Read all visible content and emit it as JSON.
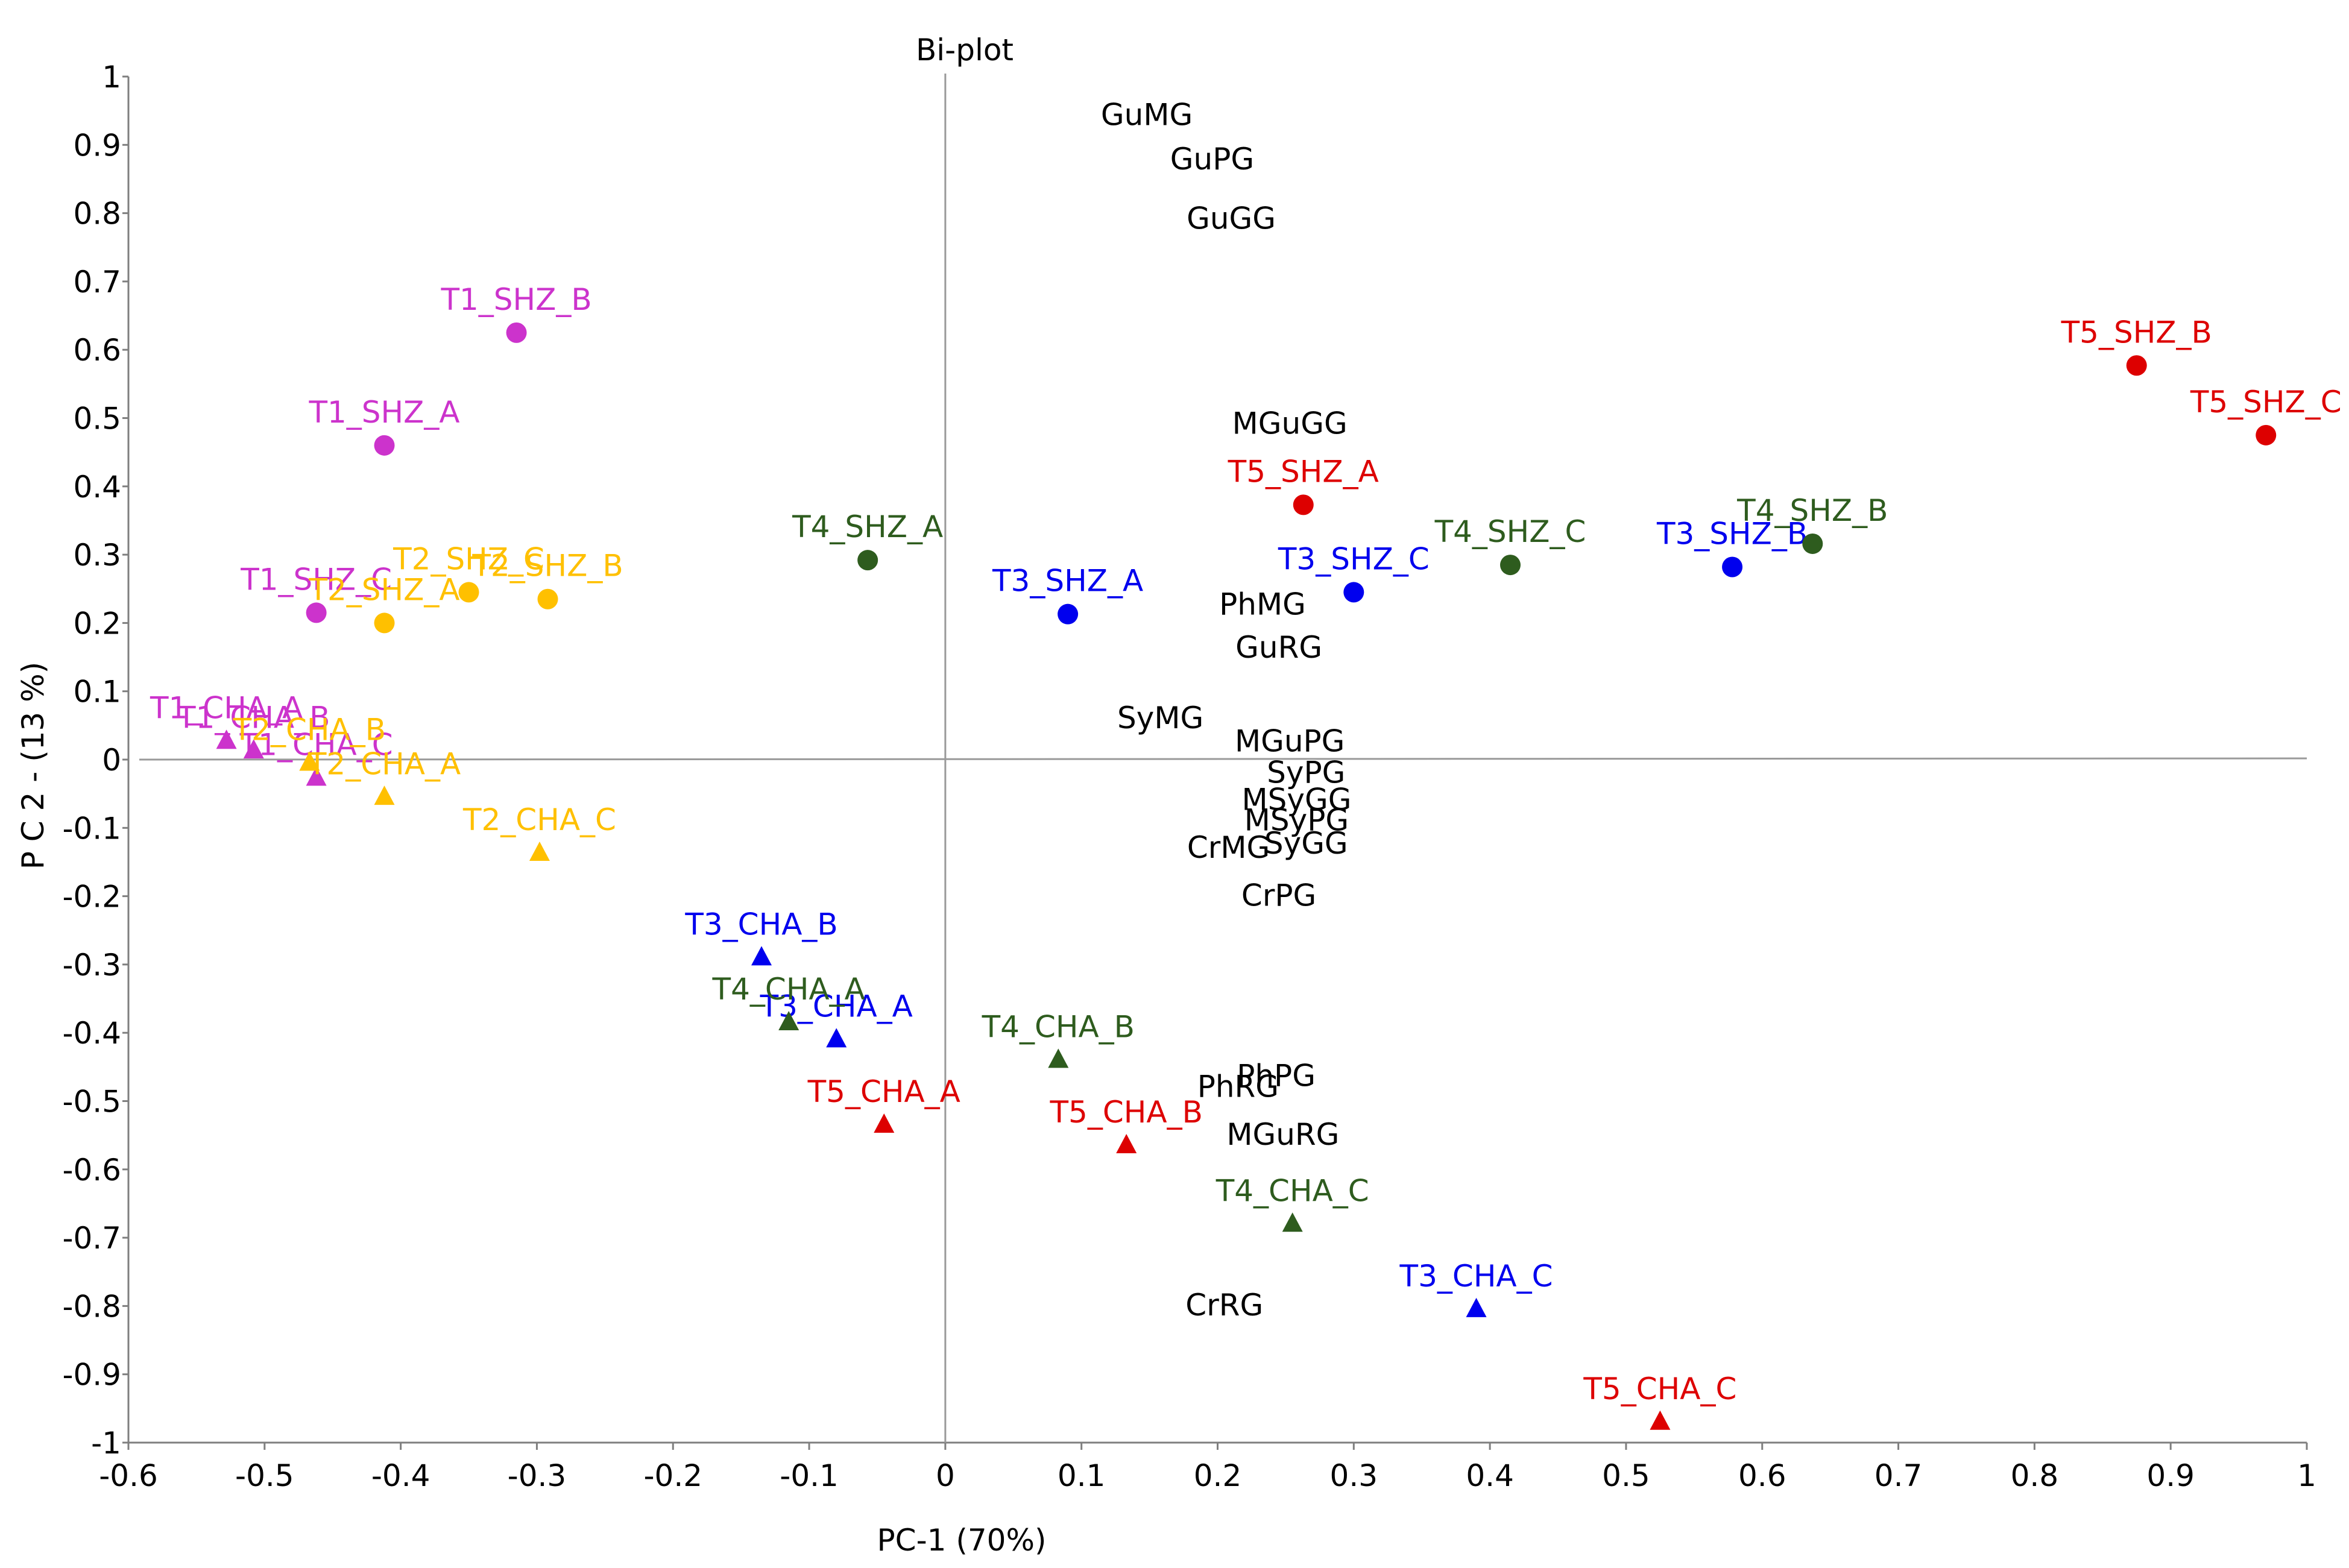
{
  "chart_data": {
    "type": "scatter",
    "title": "Bi-plot",
    "xlabel": "PC-1 (70%)",
    "ylabel": "P C 2 - (13 %)",
    "xlim": [
      -0.6,
      1.0
    ],
    "ylim": [
      -1.0,
      1.0
    ],
    "x_ticks": [
      "-0.6",
      "-0.5",
      "-0.4",
      "-0.3",
      "-0.2",
      "-0.1",
      "0",
      "0.1",
      "0.2",
      "0.3",
      "0.4",
      "0.5",
      "0.6",
      "0.7",
      "0.8",
      "0.9",
      "1"
    ],
    "y_ticks": [
      "1",
      "0.9",
      "0.8",
      "0.7",
      "0.6",
      "0.5",
      "0.4",
      "0.3",
      "0.2",
      "0.1",
      "0",
      "-0.1",
      "-0.2",
      "-0.3",
      "-0.4",
      "-0.5",
      "-0.6",
      "-0.7",
      "-0.8",
      "-0.9",
      "-1"
    ],
    "grid": false,
    "legend": "none",
    "colors": {
      "T1": "#cc33cc",
      "T2": "#ffc000",
      "T3": "#0000ee",
      "T4": "#2e5c1e",
      "T5": "#dd0000"
    },
    "series": [
      {
        "name": "T1",
        "color": "#cc33cc",
        "points": [
          {
            "label": "T1_SHZ_B",
            "x": -0.315,
            "y": 0.625,
            "shape": "circle"
          },
          {
            "label": "T1_SHZ_A",
            "x": -0.412,
            "y": 0.46,
            "shape": "circle"
          },
          {
            "label": "T1_SHZ_C",
            "x": -0.462,
            "y": 0.215,
            "shape": "circle"
          },
          {
            "label": "T1_CHA_A",
            "x": -0.528,
            "y": 0.027,
            "shape": "triangle"
          },
          {
            "label": "T1_CHA_B",
            "x": -0.508,
            "y": 0.013,
            "shape": "triangle"
          },
          {
            "label": "T1_CHA_C",
            "x": -0.462,
            "y": -0.027,
            "shape": "triangle"
          }
        ]
      },
      {
        "name": "T2",
        "color": "#ffc000",
        "points": [
          {
            "label": "T2_SHZ_C",
            "x": -0.35,
            "y": 0.245,
            "shape": "circle"
          },
          {
            "label": "T2_SHZ_B",
            "x": -0.292,
            "y": 0.235,
            "shape": "circle"
          },
          {
            "label": "T2_SHZ_A",
            "x": -0.412,
            "y": 0.2,
            "shape": "circle"
          },
          {
            "label": "T2_CHA_B",
            "x": -0.467,
            "y": -0.005,
            "shape": "triangle"
          },
          {
            "label": "T2_CHA_A",
            "x": -0.412,
            "y": -0.055,
            "shape": "triangle"
          },
          {
            "label": "T2_CHA_C",
            "x": -0.298,
            "y": -0.137,
            "shape": "triangle"
          }
        ]
      },
      {
        "name": "T3",
        "color": "#0000ee",
        "points": [
          {
            "label": "T3_SHZ_A",
            "x": 0.09,
            "y": 0.213,
            "shape": "circle"
          },
          {
            "label": "T3_SHZ_C",
            "x": 0.3,
            "y": 0.245,
            "shape": "circle"
          },
          {
            "label": "T3_SHZ_B",
            "x": 0.578,
            "y": 0.282,
            "shape": "circle"
          },
          {
            "label": "T3_CHA_B",
            "x": -0.135,
            "y": -0.29,
            "shape": "triangle"
          },
          {
            "label": "T3_CHA_A",
            "x": -0.08,
            "y": -0.41,
            "shape": "triangle"
          },
          {
            "label": "T3_CHA_C",
            "x": 0.39,
            "y": -0.805,
            "shape": "triangle"
          }
        ]
      },
      {
        "name": "T4",
        "color": "#2e5c1e",
        "points": [
          {
            "label": "T4_SHZ_A",
            "x": -0.057,
            "y": 0.292,
            "shape": "circle"
          },
          {
            "label": "T4_SHZ_C",
            "x": 0.415,
            "y": 0.285,
            "shape": "circle"
          },
          {
            "label": "T4_SHZ_B",
            "x": 0.637,
            "y": 0.316,
            "shape": "circle"
          },
          {
            "label": "T4_CHA_A",
            "x": -0.115,
            "y": -0.385,
            "shape": "triangle"
          },
          {
            "label": "T4_CHA_B",
            "x": 0.083,
            "y": -0.44,
            "shape": "triangle"
          },
          {
            "label": "T4_CHA_C",
            "x": 0.255,
            "y": -0.68,
            "shape": "triangle"
          }
        ]
      },
      {
        "name": "T5",
        "color": "#dd0000",
        "points": [
          {
            "label": "T5_SHZ_A",
            "x": 0.263,
            "y": 0.373,
            "shape": "circle"
          },
          {
            "label": "T5_SHZ_B",
            "x": 0.875,
            "y": 0.577,
            "shape": "circle"
          },
          {
            "label": "T5_SHZ_C",
            "x": 0.97,
            "y": 0.475,
            "shape": "circle"
          },
          {
            "label": "T5_CHA_A",
            "x": -0.045,
            "y": -0.535,
            "shape": "triangle"
          },
          {
            "label": "T5_CHA_B",
            "x": 0.133,
            "y": -0.565,
            "shape": "triangle"
          },
          {
            "label": "T5_CHA_C",
            "x": 0.525,
            "y": -0.97,
            "shape": "triangle"
          }
        ]
      }
    ],
    "variables": [
      {
        "label": "GuMG",
        "x": 0.148,
        "y": 0.945
      },
      {
        "label": "GuPG",
        "x": 0.196,
        "y": 0.88
      },
      {
        "label": "GuGG",
        "x": 0.21,
        "y": 0.793
      },
      {
        "label": "MGuGG",
        "x": 0.253,
        "y": 0.493
      },
      {
        "label": "PhMG",
        "x": 0.233,
        "y": 0.228
      },
      {
        "label": "GuRG",
        "x": 0.245,
        "y": 0.165
      },
      {
        "label": "SyMG",
        "x": 0.158,
        "y": 0.062
      },
      {
        "label": "MGuPG",
        "x": 0.253,
        "y": 0.028
      },
      {
        "label": "SyPG",
        "x": 0.265,
        "y": -0.018
      },
      {
        "label": "MSyGG",
        "x": 0.258,
        "y": -0.058
      },
      {
        "label": "MSyPG",
        "x": 0.258,
        "y": -0.088
      },
      {
        "label": "CrMG",
        "x": 0.208,
        "y": -0.128
      },
      {
        "label": "SyGG",
        "x": 0.265,
        "y": -0.122
      },
      {
        "label": "CrPG",
        "x": 0.245,
        "y": -0.198
      },
      {
        "label": "PhPG",
        "x": 0.243,
        "y": -0.462
      },
      {
        "label": "PhRG",
        "x": 0.215,
        "y": -0.478
      },
      {
        "label": "MGuRG",
        "x": 0.248,
        "y": -0.548
      },
      {
        "label": "CrRG",
        "x": 0.205,
        "y": -0.798
      }
    ]
  }
}
